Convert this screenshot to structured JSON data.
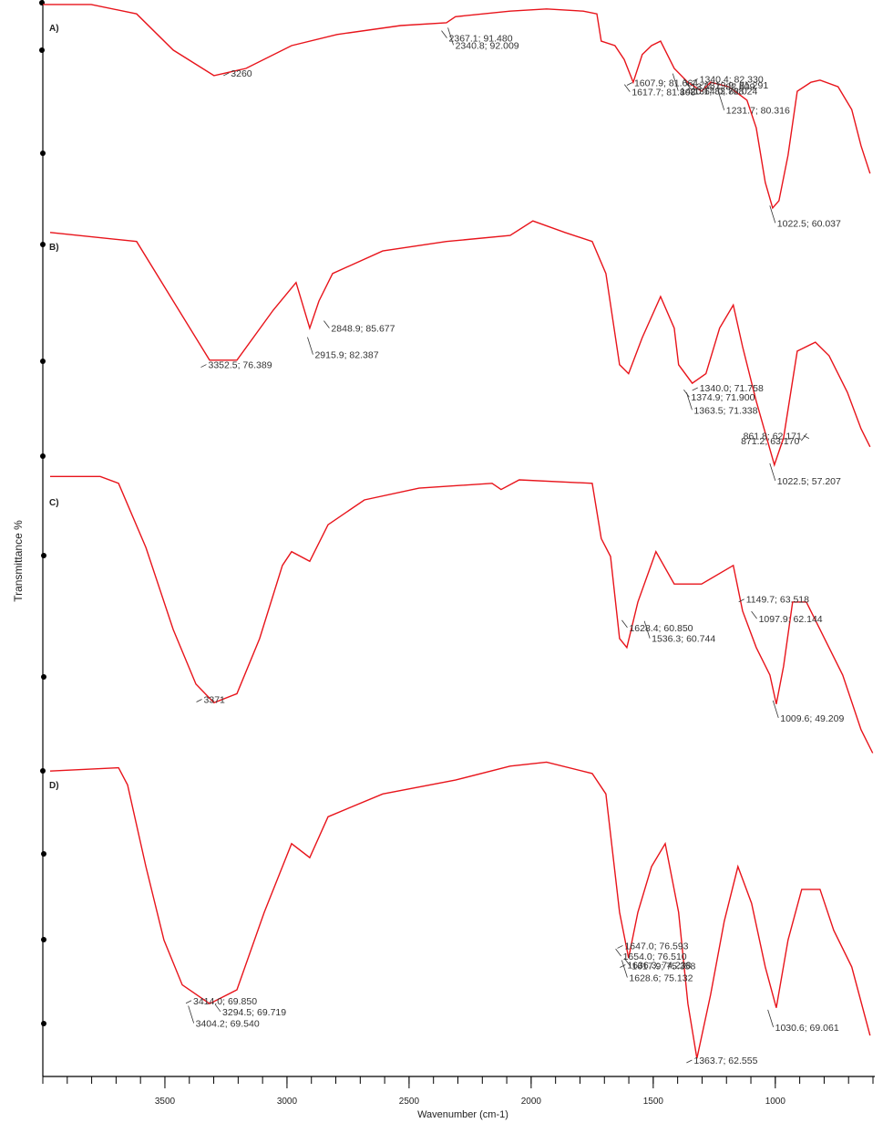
{
  "chart_data": [
    {
      "type": "line",
      "label": "A)",
      "color": "#e8141b",
      "xlim": [
        4000,
        600
      ],
      "ylim": [
        56,
        97
      ],
      "x": [
        4000,
        3802,
        3616,
        3466,
        3299,
        3168,
        2981,
        2795,
        2534,
        2347,
        2310,
        2086,
        1937,
        1787,
        1731,
        1713,
        1657,
        1619,
        1582,
        1545,
        1507,
        1470,
        1414,
        1358,
        1302,
        1265,
        1190,
        1116,
        1078,
        1041,
        1011,
        985,
        948,
        910,
        854,
        817,
        743,
        687,
        649,
        612
      ],
      "values": [
        96.2,
        96.2,
        94.5,
        88.0,
        83.4,
        84.7,
        88.8,
        90.8,
        92.4,
        92.9,
        94.0,
        95.0,
        95.4,
        95.0,
        94.5,
        89.6,
        88.8,
        86.3,
        82.2,
        87.2,
        88.8,
        89.6,
        84.7,
        82.2,
        80.6,
        82.2,
        81.4,
        79.0,
        74.0,
        64.2,
        59.6,
        60.9,
        69.1,
        80.6,
        82.2,
        82.6,
        81.4,
        77.3,
        70.8,
        65.8
      ],
      "annotations": [
        {
          "label": "3260",
          "x": 3260,
          "y": 83.4
        },
        {
          "label": "2367.1; 91.480",
          "x": 2367.1,
          "y": 91.48
        },
        {
          "label": "2340.8; 92.009",
          "x": 2340.8,
          "y": 92.009
        },
        {
          "label": "1607.9; 81.664",
          "x": 1607.9,
          "y": 81.664
        },
        {
          "label": "1374.7; 82.809",
          "x": 1374.7,
          "y": 82.809
        },
        {
          "label": "1420.1; 83.768",
          "x": 1420.1,
          "y": 83.768
        },
        {
          "label": "1340.4; 82.330",
          "x": 1340.4,
          "y": 82.33
        },
        {
          "label": "1617.7; 81.808",
          "x": 1617.7,
          "y": 81.808
        },
        {
          "label": "1231.7; 80.316",
          "x": 1231.7,
          "y": 80.316
        },
        {
          "label": "1319.9; 81.291",
          "x": 1319.9,
          "y": 81.291
        },
        {
          "label": "1364.0; 82.024",
          "x": 1364.0,
          "y": 82.024
        },
        {
          "label": "1022.5; 60.037",
          "x": 1022.5,
          "y": 60.037
        }
      ]
    },
    {
      "type": "line",
      "label": "B)",
      "color": "#e8141b",
      "xlim": [
        4000,
        600
      ],
      "ylim": [
        55,
        106
      ],
      "x": [
        3970,
        3616,
        3466,
        3317,
        3205,
        3056,
        2963,
        2907,
        2869,
        2813,
        2608,
        2347,
        2086,
        1993,
        1862,
        1750,
        1694,
        1638,
        1601,
        1545,
        1470,
        1414,
        1396,
        1340,
        1284,
        1228,
        1172,
        1134,
        1078,
        1004,
        966,
        910,
        836,
        780,
        705,
        649,
        612
      ],
      "values": [
        103.3,
        101.5,
        89.6,
        77.8,
        77.8,
        87.8,
        93.3,
        84.2,
        89.6,
        95.1,
        99.6,
        101.5,
        102.7,
        105.6,
        103.3,
        101.5,
        95.1,
        76.9,
        75.1,
        82.3,
        90.5,
        84.2,
        76.9,
        73.2,
        75.1,
        84.2,
        88.8,
        80.5,
        69.6,
        56.9,
        62.3,
        79.6,
        81.4,
        78.7,
        71.4,
        64.1,
        60.5
      ],
      "annotations": [
        {
          "label": "3352.5; 76.389",
          "x": 3352.5,
          "y": 76.389
        },
        {
          "label": "2848.9; 85.677",
          "x": 2848.9,
          "y": 85.677
        },
        {
          "label": "2915.9; 82.387",
          "x": 2915.9,
          "y": 82.387
        },
        {
          "label": "1340.0; 71.758",
          "x": 1340.0,
          "y": 71.758
        },
        {
          "label": "1374.9; 71.900",
          "x": 1374.9,
          "y": 71.9
        },
        {
          "label": "1363.5; 71.338",
          "x": 1363.5,
          "y": 71.338
        },
        {
          "label": "861.8; 62.171",
          "x": 861.8,
          "y": 62.171
        },
        {
          "label": "871.2; 63.170",
          "x": 871.2,
          "y": 63.17
        },
        {
          "label": "1022.5; 57.207",
          "x": 1022.5,
          "y": 57.207
        }
      ]
    },
    {
      "type": "line",
      "label": "C)",
      "color": "#e8141b",
      "xlim": [
        4000,
        600
      ],
      "ylim": [
        41,
        82
      ],
      "x": [
        3970,
        3765,
        3690,
        3578,
        3466,
        3373,
        3299,
        3205,
        3112,
        3019,
        2981,
        2907,
        2832,
        2683,
        2459,
        2160,
        2123,
        2049,
        1750,
        1713,
        1675,
        1638,
        1608,
        1563,
        1489,
        1414,
        1302,
        1172,
        1134,
        1078,
        1022,
        996,
        966,
        929,
        873,
        817,
        724,
        649,
        601
      ],
      "values": [
        81.7,
        81.7,
        80.7,
        71.4,
        59.5,
        51.6,
        48.9,
        50.2,
        58.2,
        68.8,
        70.8,
        69.4,
        74.7,
        78.3,
        80.0,
        80.7,
        79.8,
        81.2,
        80.7,
        72.7,
        70.1,
        58.2,
        56.9,
        63.5,
        70.8,
        66.1,
        66.1,
        68.8,
        62.2,
        56.9,
        52.9,
        48.7,
        54.2,
        63.5,
        63.5,
        59.5,
        52.9,
        45.0,
        41.6
      ],
      "annotations": [
        {
          "label": "3371",
          "x": 3371,
          "y": 49
        },
        {
          "label": "1628.4; 60.850",
          "x": 1628.4,
          "y": 60.85
        },
        {
          "label": "1536.3; 60.744",
          "x": 1536.3,
          "y": 60.744
        },
        {
          "label": "1149.7; 63.518",
          "x": 1149.7,
          "y": 63.518
        },
        {
          "label": "1097.9; 62.144",
          "x": 1097.9,
          "y": 62.144
        },
        {
          "label": "1009.6; 49.209",
          "x": 1009.6,
          "y": 49.209
        }
      ]
    },
    {
      "type": "line",
      "label": "D)",
      "color": "#e8141b",
      "xlim": [
        4000,
        600
      ],
      "ylim": [
        62,
        100
      ],
      "xlabel": "Wavenumber (cm-1)",
      "ylabel": "Transmittance %",
      "xticks": [
        3500,
        3000,
        2500,
        2000,
        1500,
        1000
      ],
      "x": [
        3970,
        3690,
        3653,
        3578,
        3504,
        3429,
        3317,
        3205,
        3093,
        2981,
        2907,
        2832,
        2608,
        2310,
        2086,
        1937,
        1750,
        1694,
        1638,
        1601,
        1563,
        1507,
        1451,
        1396,
        1358,
        1321,
        1265,
        1209,
        1153,
        1097,
        1041,
        996,
        948,
        892,
        817,
        761,
        687,
        612
      ],
      "values": [
        98.3,
        98.7,
        96.6,
        86.6,
        77.6,
        72.1,
        69.8,
        71.5,
        81.0,
        89.4,
        87.7,
        92.7,
        95.5,
        97.2,
        98.9,
        99.4,
        98.0,
        95.5,
        81.0,
        75.4,
        81.0,
        86.6,
        89.4,
        81.0,
        69.8,
        63.1,
        70.9,
        79.9,
        86.6,
        82.1,
        74.3,
        69.3,
        77.6,
        83.8,
        83.8,
        78.8,
        74.3,
        65.9
      ],
      "annotations": [
        {
          "label": "1647.0; 76.593",
          "x": 1647.0,
          "y": 76.593
        },
        {
          "label": "1654.0; 76.510",
          "x": 1654.0,
          "y": 76.51
        },
        {
          "label": "1628.6; 75.132",
          "x": 1628.6,
          "y": 75.132
        },
        {
          "label": "1636.3; 74.238",
          "x": 1636.3,
          "y": 74.238
        },
        {
          "label": "1617.9; 75.358",
          "x": 1617.9,
          "y": 75.358
        },
        {
          "label": "3404.2; 69.540",
          "x": 3404.2,
          "y": 69.54
        },
        {
          "label": "3414.0; 69.850",
          "x": 3414.0,
          "y": 69.85
        },
        {
          "label": "3294.5; 69.719",
          "x": 3294.5,
          "y": 69.719
        },
        {
          "label": "1030.6; 69.061",
          "x": 1030.6,
          "y": 69.061
        },
        {
          "label": "1363.7; 62.555",
          "x": 1363.7,
          "y": 62.555
        }
      ]
    }
  ]
}
